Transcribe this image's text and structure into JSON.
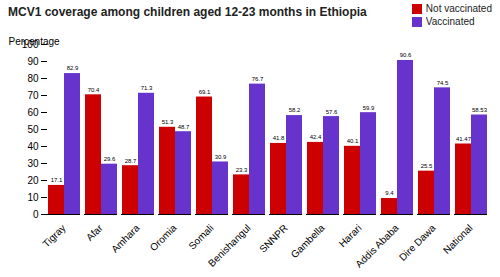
{
  "chart_data": {
    "type": "bar",
    "title": "MCV1 coverage among children aged 12-23 months in Ethiopia",
    "ylabel": "Percentage",
    "categories": [
      "Tigray",
      "Afar",
      "Amhara",
      "Oromia",
      "Somali",
      "Benishangul",
      "SNNPR",
      "Gambella",
      "Harari",
      "Addis Ababa",
      "Dire Dawa",
      "National"
    ],
    "series": [
      {
        "name": "Not vaccinated",
        "color": "#CC0000",
        "values": [
          17.1,
          70.4,
          28.7,
          51.3,
          69.1,
          23.3,
          41.8,
          42.4,
          40.1,
          9.4,
          25.5,
          41.47
        ]
      },
      {
        "name": "Vaccinated",
        "color": "#6633CC",
        "values": [
          82.9,
          29.6,
          71.3,
          48.7,
          30.9,
          76.7,
          58.2,
          57.6,
          59.9,
          90.6,
          74.5,
          58.53
        ]
      }
    ],
    "ylim": [
      0,
      100
    ],
    "yticks": [
      0,
      10,
      20,
      30,
      40,
      50,
      60,
      70,
      80,
      90,
      100
    ],
    "grid": false,
    "legend": "upper right",
    "data_labels": true
  }
}
